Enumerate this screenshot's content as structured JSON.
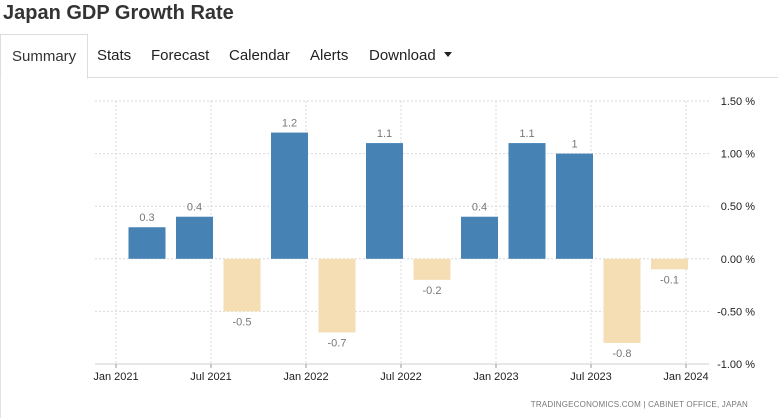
{
  "title": "Japan GDP Growth Rate",
  "tabs": [
    {
      "label": "Summary",
      "active": true
    },
    {
      "label": "Stats"
    },
    {
      "label": "Forecast"
    },
    {
      "label": "Calendar"
    },
    {
      "label": "Alerts"
    },
    {
      "label": "Download",
      "dropdown": true
    }
  ],
  "source": "TRADINGECONOMICS.COM | CABINET OFFICE, JAPAN",
  "colors": {
    "positive": "#4682b4",
    "negative": "#f5deb3",
    "grid": "#d9d9d9",
    "label": "#777777"
  },
  "chart_data": {
    "type": "bar",
    "categories": [
      "Q1 2021",
      "Q2 2021",
      "Q3 2021",
      "Q4 2021",
      "Q1 2022",
      "Q2 2022",
      "Q3 2022",
      "Q4 2022",
      "Q1 2023",
      "Q2 2023",
      "Q3 2023",
      "Q4 2023"
    ],
    "values": [
      0.3,
      0.4,
      -0.5,
      1.2,
      -0.7,
      1.1,
      -0.2,
      0.4,
      1.1,
      1,
      -0.8,
      -0.1
    ],
    "value_labels": [
      "0.3",
      "0.4",
      "-0.5",
      "1.2",
      "-0.7",
      "1.1",
      "-0.2",
      "0.4",
      "1.1",
      "1",
      "-0.8",
      "-0.1"
    ],
    "x_ticks": [
      "Jan 2021",
      "Jul 2021",
      "Jan 2022",
      "Jul 2022",
      "Jan 2023",
      "Jul 2023",
      "Jan 2024"
    ],
    "y_ticks": [
      "1.50 %",
      "1.00 %",
      "0.50 %",
      "0.00 %",
      "-0.50 %",
      "-1.00 %"
    ],
    "y_tick_values": [
      1.5,
      1.0,
      0.5,
      0.0,
      -0.5,
      -1.0
    ],
    "ylim": [
      -1.0,
      1.5
    ],
    "y_axis_position": "right",
    "grid": true
  }
}
